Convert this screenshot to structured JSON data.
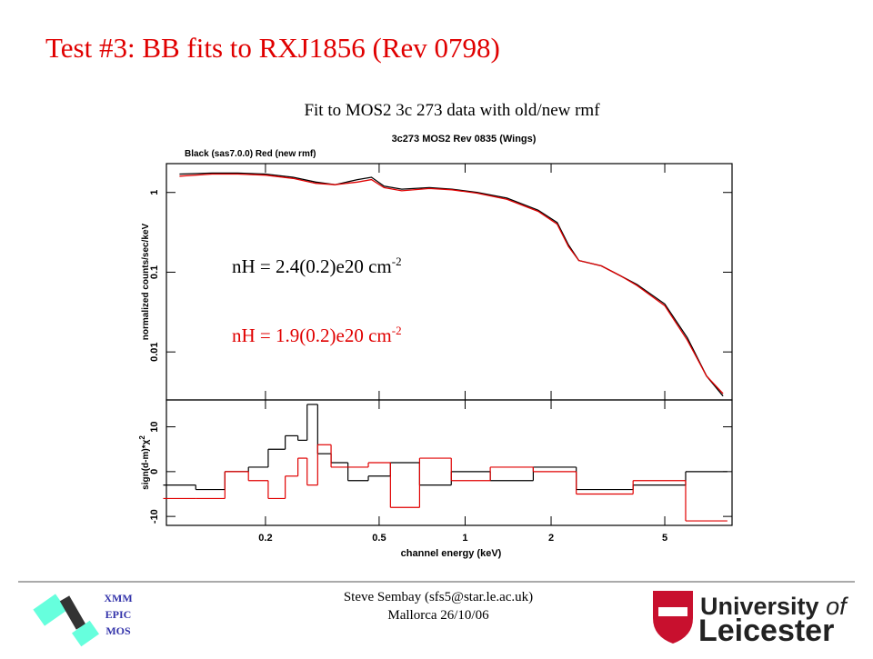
{
  "slide": {
    "title": "Test #3: BB fits to RXJ1856 (Rev 0798)",
    "subtitle": "Fit to MOS2 3c 273 data with old/new rmf",
    "logo_text": [
      "XMM",
      "EPIC",
      "MOS"
    ],
    "footer": [
      "Steve Sembay (sfs5@star.le.ac.uk)",
      "Mallorca 26/10/06"
    ],
    "university": [
      "University",
      "of",
      "Leicester"
    ]
  },
  "chart_data": [
    {
      "type": "line",
      "title": "3c273  MOS2  Rev 0835  (Wings)",
      "note": "Black (sas7.0.0)  Red (new rmf)",
      "ylabel": "normalized counts/sec/keV",
      "log_x": true,
      "log_y": true,
      "xlim": [
        0.09,
        8.6
      ],
      "ylim": [
        0.0025,
        2.3
      ],
      "yticks": [
        0.01,
        0.1,
        1
      ],
      "x": [
        0.1,
        0.13,
        0.16,
        0.2,
        0.25,
        0.3,
        0.35,
        0.42,
        0.47,
        0.52,
        0.6,
        0.75,
        0.9,
        1.1,
        1.4,
        1.8,
        2.1,
        2.3,
        2.5,
        3,
        3.5,
        4,
        5,
        6,
        7,
        8
      ],
      "series": [
        {
          "color": "#000000",
          "values": [
            1.7,
            1.75,
            1.75,
            1.7,
            1.55,
            1.35,
            1.25,
            1.45,
            1.55,
            1.2,
            1.1,
            1.15,
            1.1,
            1.0,
            0.85,
            0.6,
            0.42,
            0.22,
            0.14,
            0.12,
            0.09,
            0.07,
            0.04,
            0.015,
            0.005,
            0.0028
          ]
        },
        {
          "color": "#e00000",
          "values": [
            1.6,
            1.7,
            1.7,
            1.65,
            1.5,
            1.3,
            1.25,
            1.35,
            1.45,
            1.15,
            1.05,
            1.12,
            1.08,
            0.98,
            0.82,
            0.58,
            0.4,
            0.21,
            0.14,
            0.12,
            0.09,
            0.068,
            0.038,
            0.014,
            0.005,
            0.003
          ]
        }
      ],
      "annotations": [
        {
          "text": "nH = 2.4(0.2)e20 cm",
          "sup": "-2",
          "color": "#000000"
        },
        {
          "text": "nH = 1.9(0.2)e20 cm",
          "sup": "-2",
          "color": "#e00000"
        }
      ]
    },
    {
      "type": "step",
      "xlabel": "channel energy (keV)",
      "ylabel": "sign(d-m)*χ",
      "ylabel_sup": "2",
      "log_x": true,
      "xlim": [
        0.09,
        8.6
      ],
      "ylim": [
        -12,
        16
      ],
      "xticks": [
        0.2,
        0.5,
        1,
        2,
        5
      ],
      "yticks": [
        -10,
        0,
        10
      ],
      "x": [
        0.1,
        0.13,
        0.16,
        0.19,
        0.22,
        0.25,
        0.27,
        0.29,
        0.32,
        0.36,
        0.42,
        0.5,
        0.6,
        0.8,
        1,
        1.5,
        2,
        3,
        5,
        7
      ],
      "series": [
        {
          "color": "#000000",
          "values": [
            -3,
            -4,
            0,
            1,
            5,
            8,
            7,
            15,
            4,
            2,
            -2,
            -1,
            2,
            -3,
            0,
            -2,
            1,
            -4,
            -3,
            0
          ]
        },
        {
          "color": "#e00000",
          "values": [
            -6,
            -6,
            0,
            -2,
            -6,
            -1,
            3,
            -3,
            6,
            1,
            1,
            2,
            -8,
            3,
            -2,
            1,
            0,
            -5,
            -2,
            -11
          ]
        }
      ]
    }
  ]
}
